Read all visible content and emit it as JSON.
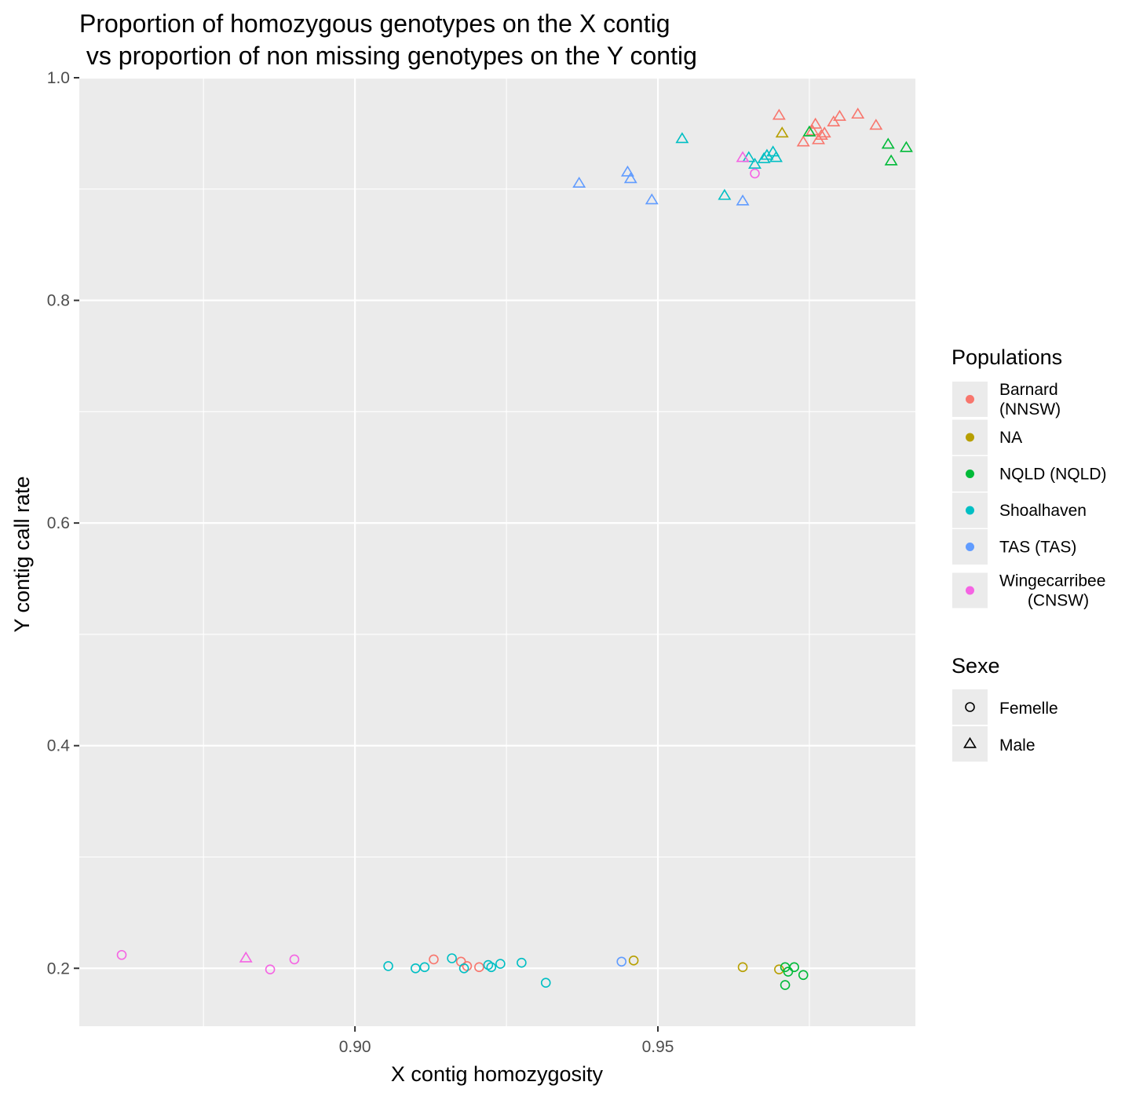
{
  "chart_data": {
    "type": "scatter",
    "title_lines": [
      "Proportion of homozygous genotypes on the X contig",
      " vs proportion of non missing genotypes on the Y contig"
    ],
    "xlabel": "X contig homozygosity",
    "ylabel": "Y contig call rate",
    "xlim": [
      0.8545,
      0.9925
    ],
    "ylim": [
      0.148,
      1.0
    ],
    "x_ticks": [
      0.9,
      0.95
    ],
    "x_tick_labels": [
      "0.90",
      "0.95"
    ],
    "y_ticks": [
      0.2,
      0.4,
      0.6,
      0.8,
      1.0
    ],
    "y_tick_labels": [
      "0.2",
      "0.4",
      "0.6",
      "0.8",
      "1.0"
    ],
    "grid": true,
    "legend_placement": "right",
    "legend_color_title": "Populations",
    "legend_shape_title": "Sexe",
    "populations": [
      {
        "key": "barnard",
        "label_lines": [
          "Barnard",
          "(NNSW)"
        ],
        "color": "#F8766D"
      },
      {
        "key": "na",
        "label_lines": [
          "NA"
        ],
        "color": "#B79F00"
      },
      {
        "key": "nqld",
        "label_lines": [
          "NQLD (NQLD)"
        ],
        "color": "#00BA38"
      },
      {
        "key": "shoalhaven",
        "label_lines": [
          "Shoalhaven"
        ],
        "color": "#00BFC4"
      },
      {
        "key": "tas",
        "label_lines": [
          "TAS (TAS)"
        ],
        "color": "#619CFF"
      },
      {
        "key": "wingecarribee",
        "label_lines": [
          "Wingecarribee",
          "(CNSW)"
        ],
        "color": "#F564E3"
      }
    ],
    "sexes": [
      {
        "key": "female",
        "label": "Femelle",
        "shape": "circle"
      },
      {
        "key": "male",
        "label": "Male",
        "shape": "triangle"
      }
    ],
    "series": [
      {
        "population": "barnard",
        "sex": "male",
        "points": [
          [
            0.97,
            0.966
          ],
          [
            0.974,
            0.942
          ],
          [
            0.976,
            0.958
          ],
          [
            0.977,
            0.948
          ],
          [
            0.979,
            0.96
          ],
          [
            0.98,
            0.965
          ],
          [
            0.983,
            0.967
          ],
          [
            0.986,
            0.957
          ],
          [
            0.9765,
            0.944
          ],
          [
            0.9755,
            0.952
          ],
          [
            0.9775,
            0.95
          ]
        ]
      },
      {
        "population": "na",
        "sex": "male",
        "points": [
          [
            0.9705,
            0.95
          ]
        ]
      },
      {
        "population": "nqld",
        "sex": "male",
        "points": [
          [
            0.975,
            0.951
          ],
          [
            0.988,
            0.94
          ],
          [
            0.9885,
            0.925
          ],
          [
            0.991,
            0.937
          ]
        ]
      },
      {
        "population": "shoalhaven",
        "sex": "male",
        "points": [
          [
            0.954,
            0.945
          ],
          [
            0.961,
            0.894
          ],
          [
            0.968,
            0.93
          ],
          [
            0.966,
            0.922
          ],
          [
            0.965,
            0.928
          ],
          [
            0.969,
            0.933
          ],
          [
            0.9695,
            0.928
          ],
          [
            0.9675,
            0.927
          ]
        ]
      },
      {
        "population": "tas",
        "sex": "male",
        "points": [
          [
            0.937,
            0.905
          ],
          [
            0.945,
            0.915
          ],
          [
            0.9455,
            0.909
          ],
          [
            0.949,
            0.89
          ],
          [
            0.964,
            0.889
          ]
        ]
      },
      {
        "population": "wingecarribee",
        "sex": "male",
        "points": [
          [
            0.964,
            0.928
          ],
          [
            0.882,
            0.209
          ]
        ]
      },
      {
        "population": "wingecarribee",
        "sex": "female",
        "points": [
          [
            0.966,
            0.914
          ],
          [
            0.8615,
            0.212
          ],
          [
            0.886,
            0.199
          ],
          [
            0.89,
            0.208
          ]
        ]
      },
      {
        "population": "barnard",
        "sex": "female",
        "points": [
          [
            0.913,
            0.208
          ],
          [
            0.9175,
            0.206
          ],
          [
            0.9185,
            0.202
          ],
          [
            0.9205,
            0.201
          ]
        ]
      },
      {
        "population": "shoalhaven",
        "sex": "female",
        "points": [
          [
            0.9055,
            0.202
          ],
          [
            0.91,
            0.2
          ],
          [
            0.9115,
            0.201
          ],
          [
            0.916,
            0.209
          ],
          [
            0.918,
            0.2
          ],
          [
            0.922,
            0.203
          ],
          [
            0.9225,
            0.201
          ],
          [
            0.924,
            0.204
          ],
          [
            0.9275,
            0.205
          ],
          [
            0.9315,
            0.187
          ]
        ]
      },
      {
        "population": "tas",
        "sex": "female",
        "points": [
          [
            0.944,
            0.206
          ]
        ]
      },
      {
        "population": "na",
        "sex": "female",
        "points": [
          [
            0.946,
            0.207
          ],
          [
            0.964,
            0.201
          ],
          [
            0.97,
            0.199
          ]
        ]
      },
      {
        "population": "nqld",
        "sex": "female",
        "points": [
          [
            0.971,
            0.201
          ],
          [
            0.9715,
            0.197
          ],
          [
            0.9725,
            0.201
          ],
          [
            0.974,
            0.194
          ],
          [
            0.971,
            0.185
          ]
        ]
      }
    ]
  }
}
